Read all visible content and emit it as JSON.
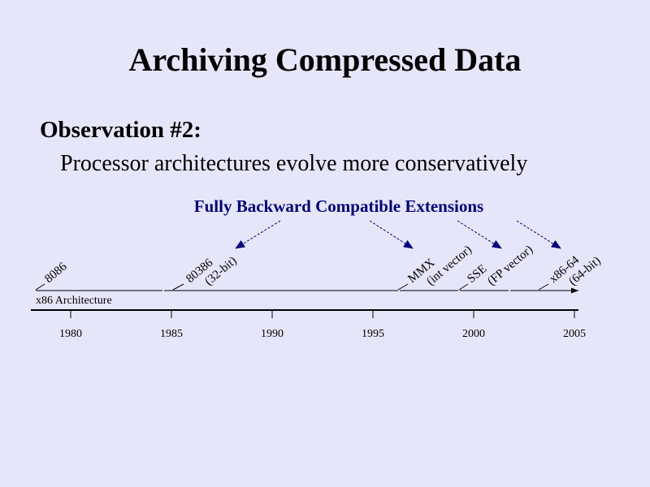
{
  "slide": {
    "title": "Archiving Compressed Data",
    "heading": "Observation #2:",
    "subheading": "Processor architectures evolve more conservatively"
  },
  "diagram": {
    "callout": "Fully Backward Compatible Extensions",
    "track_label": "x86 Architecture",
    "years": [
      "1980",
      "1985",
      "1990",
      "1995",
      "2000",
      "2005"
    ],
    "events": [
      {
        "label": "8086"
      },
      {
        "label": "80386",
        "note": "(32-bit)"
      },
      {
        "label": "MMX",
        "note": "(int vector)"
      },
      {
        "label": "SSE",
        "note": "(FP vector)"
      },
      {
        "label": "x86-64",
        "note": "(64-bit)"
      }
    ]
  },
  "colors": {
    "background": "#e6e6fa",
    "accent": "#000080",
    "text": "#000000"
  }
}
